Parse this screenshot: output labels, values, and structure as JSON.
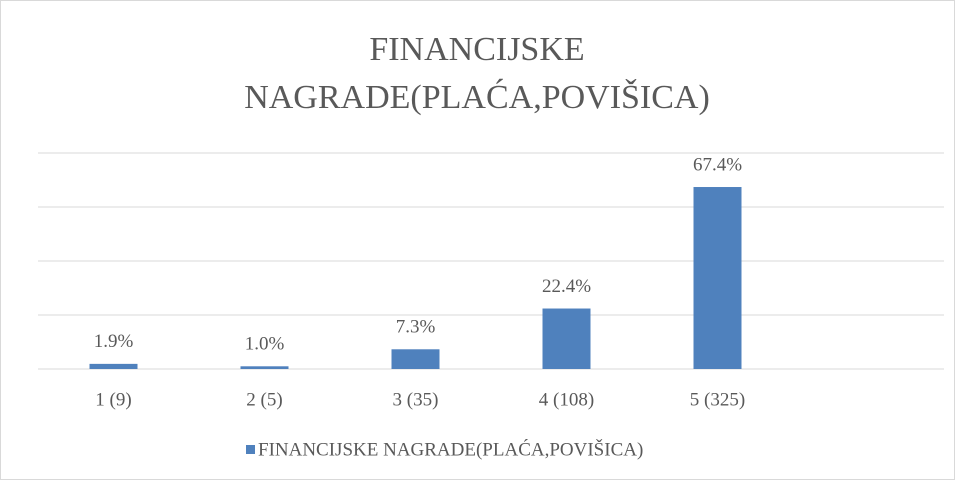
{
  "chart_data": {
    "type": "bar",
    "title": [
      "FINANCIJSKE",
      "NAGRADE(PLAĆA,POVIŠICA)"
    ],
    "categories": [
      "1 (9)",
      "2 (5)",
      "3 (35)",
      "4 (108)",
      "5 (325)"
    ],
    "series": [
      {
        "name": "FINANCIJSKE NAGRADE(PLAĆA,POVIŠICA)",
        "color": "#4f81bd",
        "values": [
          1.9,
          1.0,
          7.3,
          22.4,
          67.4
        ],
        "value_labels": [
          "1.9%",
          "1.0%",
          "7.3%",
          "22.4%",
          "67.4%"
        ]
      }
    ],
    "ylim": [
      0,
      80
    ],
    "yticks": [
      0,
      20,
      40,
      60,
      80
    ],
    "grid": true,
    "legend": "bottom"
  }
}
